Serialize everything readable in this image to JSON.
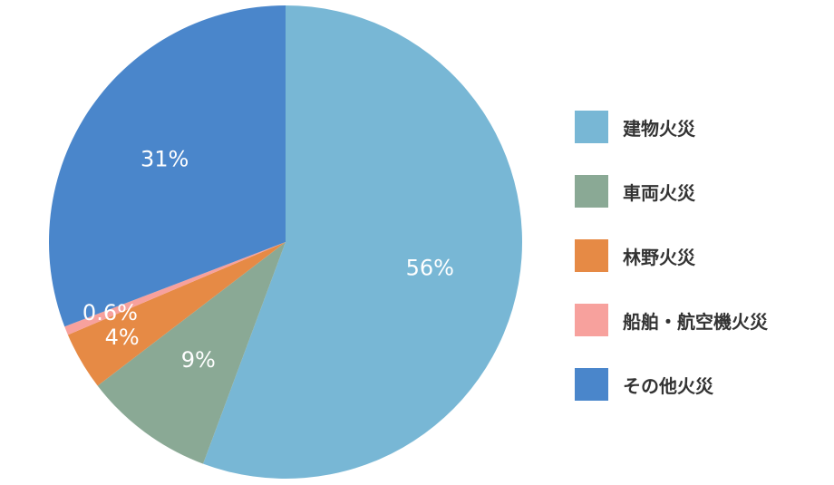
{
  "chart_data": {
    "type": "pie",
    "categories": [
      "建物火災",
      "車両火災",
      "林野火災",
      "船舶・航空機火災",
      "その他火災"
    ],
    "values": [
      56,
      9,
      4,
      0.6,
      31
    ],
    "value_labels": [
      "56%",
      "9%",
      "4%",
      "0.6%",
      "31%"
    ],
    "colors": [
      "#78b7d5",
      "#8aa995",
      "#e68a45",
      "#f7a19d",
      "#4a86cb"
    ],
    "start_angle_deg": 0,
    "direction": "clockwise",
    "legend_position": "right"
  }
}
